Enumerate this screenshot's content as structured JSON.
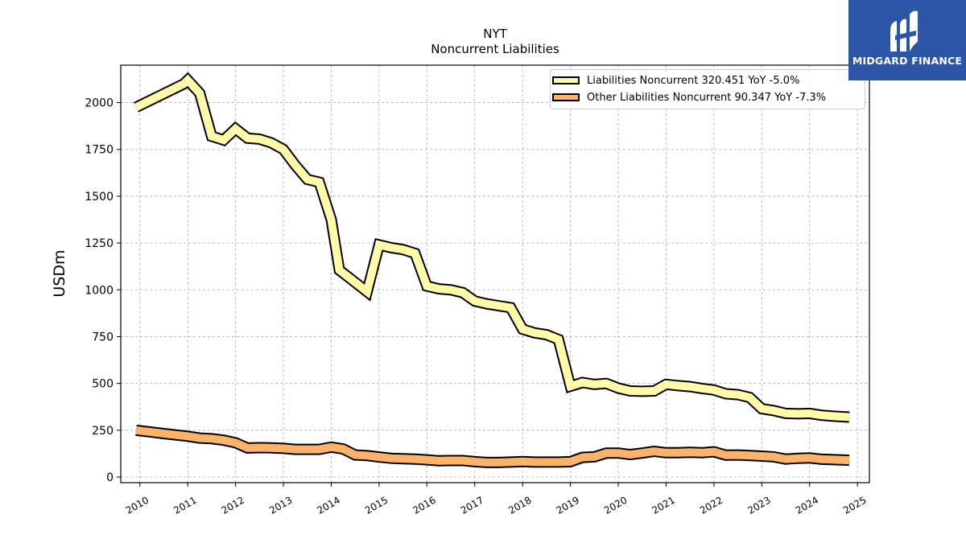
{
  "title_line1": "NYT",
  "title_line2": "Noncurrent  Liabilities",
  "logo": {
    "text": "MIDGARD FINANCE",
    "icon": "midgard-m-logo-icon",
    "bg_color": "#2b55a5"
  },
  "chart_data": {
    "type": "line",
    "ylabel": "USDm",
    "xlabel": "",
    "xlim": [
      2009.6,
      2025.25
    ],
    "ylim": [
      -30,
      2200
    ],
    "yticks": [
      0,
      250,
      500,
      750,
      1000,
      1250,
      1500,
      1750,
      2000
    ],
    "xticks": [
      2010,
      2011,
      2012,
      2013,
      2014,
      2015,
      2016,
      2017,
      2018,
      2019,
      2020,
      2021,
      2022,
      2023,
      2024,
      2025
    ],
    "grid": true,
    "legend_position": "top-right",
    "series": [
      {
        "name": "Liabilities Noncurrent",
        "legend_label": "Liabilities Noncurrent  320.451 YoY -5.0%",
        "color": "#fffaa8",
        "x": [
          2009.92,
          2010.92,
          2011.0,
          2011.25,
          2011.5,
          2011.75,
          2012.0,
          2012.25,
          2012.5,
          2012.75,
          2013.0,
          2013.25,
          2013.5,
          2013.75,
          2014.0,
          2014.17,
          2014.5,
          2014.75,
          2015.0,
          2015.25,
          2015.5,
          2015.75,
          2016.0,
          2016.25,
          2016.5,
          2016.75,
          2017.0,
          2017.25,
          2017.5,
          2017.75,
          2018.0,
          2018.25,
          2018.5,
          2018.75,
          2019.0,
          2019.25,
          2019.5,
          2019.75,
          2020.0,
          2020.25,
          2020.5,
          2020.75,
          2021.0,
          2021.25,
          2021.5,
          2021.75,
          2022.0,
          2022.25,
          2022.5,
          2022.75,
          2023.0,
          2023.25,
          2023.5,
          2023.75,
          2024.0,
          2024.25,
          2024.5,
          2024.83
        ],
        "values": [
          1975,
          2100,
          2120,
          2050,
          1820,
          1800,
          1860,
          1810,
          1805,
          1785,
          1750,
          1665,
          1590,
          1575,
          1375,
          1105,
          1040,
          990,
          1240,
          1225,
          1215,
          1195,
          1020,
          1005,
          1000,
          985,
          940,
          925,
          915,
          905,
          790,
          770,
          760,
          735,
          485,
          505,
          495,
          500,
          475,
          460,
          458,
          460,
          495,
          488,
          483,
          473,
          465,
          445,
          440,
          425,
          365,
          355,
          340,
          338,
          340,
          330,
          325,
          320
        ]
      },
      {
        "name": "Other Liabilities Noncurrent",
        "legend_label": "Other Liabilities Noncurrent  90.347 YoY -7.3%",
        "color": "#fbb36a",
        "x": [
          2009.92,
          2010.25,
          2010.5,
          2010.75,
          2011.0,
          2011.25,
          2011.5,
          2011.75,
          2012.0,
          2012.25,
          2012.5,
          2012.75,
          2013.0,
          2013.25,
          2013.5,
          2013.75,
          2014.0,
          2014.25,
          2014.5,
          2014.75,
          2015.0,
          2015.25,
          2015.5,
          2015.75,
          2016.0,
          2016.25,
          2016.5,
          2016.75,
          2017.0,
          2017.25,
          2017.5,
          2017.75,
          2018.0,
          2018.25,
          2018.5,
          2018.75,
          2019.0,
          2019.25,
          2019.5,
          2019.75,
          2020.0,
          2020.25,
          2020.5,
          2020.75,
          2021.0,
          2021.25,
          2021.5,
          2021.75,
          2022.0,
          2022.25,
          2022.5,
          2022.75,
          2023.0,
          2023.25,
          2023.5,
          2023.75,
          2024.0,
          2024.25,
          2024.5,
          2024.83
        ],
        "values": [
          250,
          240,
          232,
          225,
          218,
          208,
          205,
          197,
          183,
          155,
          157,
          156,
          153,
          148,
          148,
          148,
          160,
          150,
          118,
          115,
          107,
          100,
          98,
          96,
          92,
          87,
          88,
          88,
          82,
          78,
          78,
          80,
          83,
          80,
          80,
          80,
          82,
          105,
          108,
          128,
          128,
          120,
          128,
          137,
          130,
          130,
          132,
          130,
          135,
          117,
          118,
          115,
          112,
          108,
          96,
          100,
          102,
          95,
          93,
          90
        ]
      }
    ]
  }
}
